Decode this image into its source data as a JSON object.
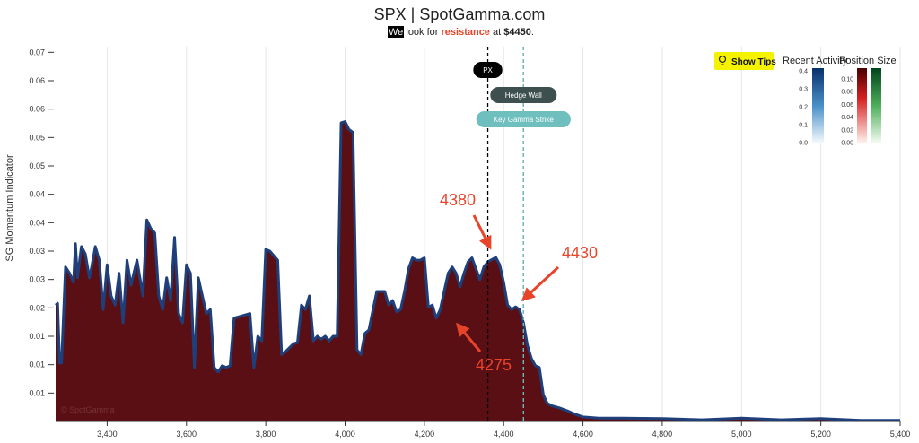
{
  "chart_data": {
    "type": "area",
    "title": "SPX | SpotGamma.com",
    "subtitle": {
      "parts": [
        "We",
        " look for ",
        "resistance",
        " at ",
        "$4450",
        "."
      ]
    },
    "y_label": "SG Momentum Indicator",
    "watermark": "© SpotGamma",
    "x": [
      3270,
      3275,
      3280,
      3285,
      3295,
      3305,
      3315,
      3320,
      3325,
      3335,
      3345,
      3355,
      3360,
      3370,
      3380,
      3390,
      3400,
      3410,
      3420,
      3430,
      3440,
      3450,
      3460,
      3475,
      3490,
      3500,
      3510,
      3520,
      3530,
      3540,
      3550,
      3560,
      3570,
      3580,
      3590,
      3600,
      3610,
      3620,
      3630,
      3640,
      3650,
      3660,
      3670,
      3680,
      3690,
      3700,
      3710,
      3720,
      3740,
      3760,
      3770,
      3780,
      3790,
      3800,
      3810,
      3830,
      3840,
      3850,
      3870,
      3880,
      3890,
      3900,
      3910,
      3920,
      3930,
      3940,
      3950,
      3960,
      3970,
      3980,
      3990,
      4000,
      4010,
      4020,
      4030,
      4040,
      4050,
      4060,
      4080,
      4100,
      4110,
      4120,
      4130,
      4140,
      4150,
      4160,
      4170,
      4180,
      4190,
      4200,
      4210,
      4220,
      4230,
      4240,
      4250,
      4260,
      4270,
      4280,
      4290,
      4300,
      4310,
      4320,
      4330,
      4340,
      4350,
      4360,
      4380,
      4390,
      4400,
      4410,
      4420,
      4430,
      4440,
      4450,
      4460,
      4470,
      4480,
      4490,
      4500,
      4510,
      4520,
      4540,
      4560,
      4580,
      4600,
      4640,
      4700,
      4800,
      4900,
      5000,
      5100,
      5200,
      5300,
      5400
    ],
    "series": [
      {
        "name": "SG Momentum Indicator",
        "color": "#5a0f14",
        "line_color": "#1f3f7a",
        "values": [
          0.0205,
          0.0208,
          0.0103,
          0.0103,
          0.0272,
          0.0261,
          0.0245,
          0.0313,
          0.0253,
          0.0308,
          0.0295,
          0.0253,
          0.0269,
          0.0308,
          0.0284,
          0.0197,
          0.0276,
          0.0221,
          0.0205,
          0.0261,
          0.0174,
          0.0284,
          0.024,
          0.0284,
          0.0221,
          0.0355,
          0.034,
          0.0332,
          0.0221,
          0.0197,
          0.0253,
          0.0213,
          0.0324,
          0.019,
          0.0174,
          0.0276,
          0.0261,
          0.0095,
          0.0253,
          0.0221,
          0.019,
          0.0197,
          0.0095,
          0.0087,
          0.0098,
          0.0095,
          0.0098,
          0.0182,
          0.0186,
          0.019,
          0.0095,
          0.015,
          0.0142,
          0.0303,
          0.03,
          0.0284,
          0.0118,
          0.0123,
          0.0137,
          0.0139,
          0.0205,
          0.0197,
          0.0221,
          0.0142,
          0.015,
          0.0145,
          0.015,
          0.0142,
          0.015,
          0.015,
          0.0526,
          0.0528,
          0.0514,
          0.0509,
          0.0126,
          0.0118,
          0.0155,
          0.0161,
          0.0229,
          0.0229,
          0.0205,
          0.0213,
          0.0193,
          0.0197,
          0.0229,
          0.0269,
          0.0288,
          0.0284,
          0.0284,
          0.0288,
          0.0201,
          0.0205,
          0.0182,
          0.0197,
          0.0229,
          0.0261,
          0.0272,
          0.0261,
          0.0237,
          0.0261,
          0.0281,
          0.0288,
          0.0269,
          0.025,
          0.0272,
          0.0281,
          0.0289,
          0.0276,
          0.0245,
          0.0205,
          0.0197,
          0.0202,
          0.0197,
          0.0174,
          0.0134,
          0.0111,
          0.0098,
          0.0095,
          0.0047,
          0.0032,
          0.0028,
          0.0024,
          0.0019,
          0.0013,
          0.0008,
          0.0006,
          0.0006,
          0.0005,
          0.0003,
          0.0006,
          0.0003,
          0.0005,
          0.0002,
          0.0002
        ]
      }
    ],
    "xlim": [
      3270,
      5400
    ],
    "xticks": [
      {
        "value": 3400,
        "label": "3,400"
      },
      {
        "value": 3600,
        "label": "3,600"
      },
      {
        "value": 3800,
        "label": "3,800"
      },
      {
        "value": 4000,
        "label": "4,000"
      },
      {
        "value": 4200,
        "label": "4,200"
      },
      {
        "value": 4400,
        "label": "4,400"
      },
      {
        "value": 4600,
        "label": "4,600"
      },
      {
        "value": 4800,
        "label": "4,800"
      },
      {
        "value": 5000,
        "label": "5,000"
      },
      {
        "value": 5200,
        "label": "5,200"
      },
      {
        "value": 5400,
        "label": "5,400"
      }
    ],
    "ylim": [
      0,
      0.066
    ],
    "yticks": [
      {
        "value": 0.005,
        "label": "0.01"
      },
      {
        "value": 0.01,
        "label": "0.01"
      },
      {
        "value": 0.015,
        "label": "0.01"
      },
      {
        "value": 0.02,
        "label": "0.02"
      },
      {
        "value": 0.025,
        "label": "0.03"
      },
      {
        "value": 0.03,
        "label": "0.03"
      },
      {
        "value": 0.035,
        "label": "0.04"
      },
      {
        "value": 0.04,
        "label": "0.04"
      },
      {
        "value": 0.045,
        "label": "0.05"
      },
      {
        "value": 0.05,
        "label": "0.05"
      },
      {
        "value": 0.055,
        "label": "0.06"
      },
      {
        "value": 0.06,
        "label": "0.06"
      },
      {
        "value": 0.065,
        "label": "0.07"
      }
    ],
    "grid": true,
    "markers": [
      {
        "label": "PX",
        "value": 4360,
        "color": "#000000",
        "text_color": "#ffffff"
      },
      {
        "label": "Hedge Wall",
        "value": 4450,
        "color": "#3d4f4f",
        "text_color": "#ffffff"
      },
      {
        "label": "Key Gamma Strike",
        "value": 4450,
        "color": "#6fbfbf",
        "text_color": "#ffffff"
      }
    ],
    "annotations": [
      "4380",
      "4430",
      "4275"
    ],
    "button": "Show Tips",
    "colorbars": [
      {
        "title": "Recent Activity",
        "ticks": [
          "0.4",
          "0.3",
          "0.2",
          "0.1",
          "0.0"
        ]
      },
      {
        "title": "Position Size",
        "ticks": [
          "0.10",
          "0.08",
          "0.06",
          "0.04",
          "0.02",
          "0.00"
        ]
      }
    ]
  }
}
